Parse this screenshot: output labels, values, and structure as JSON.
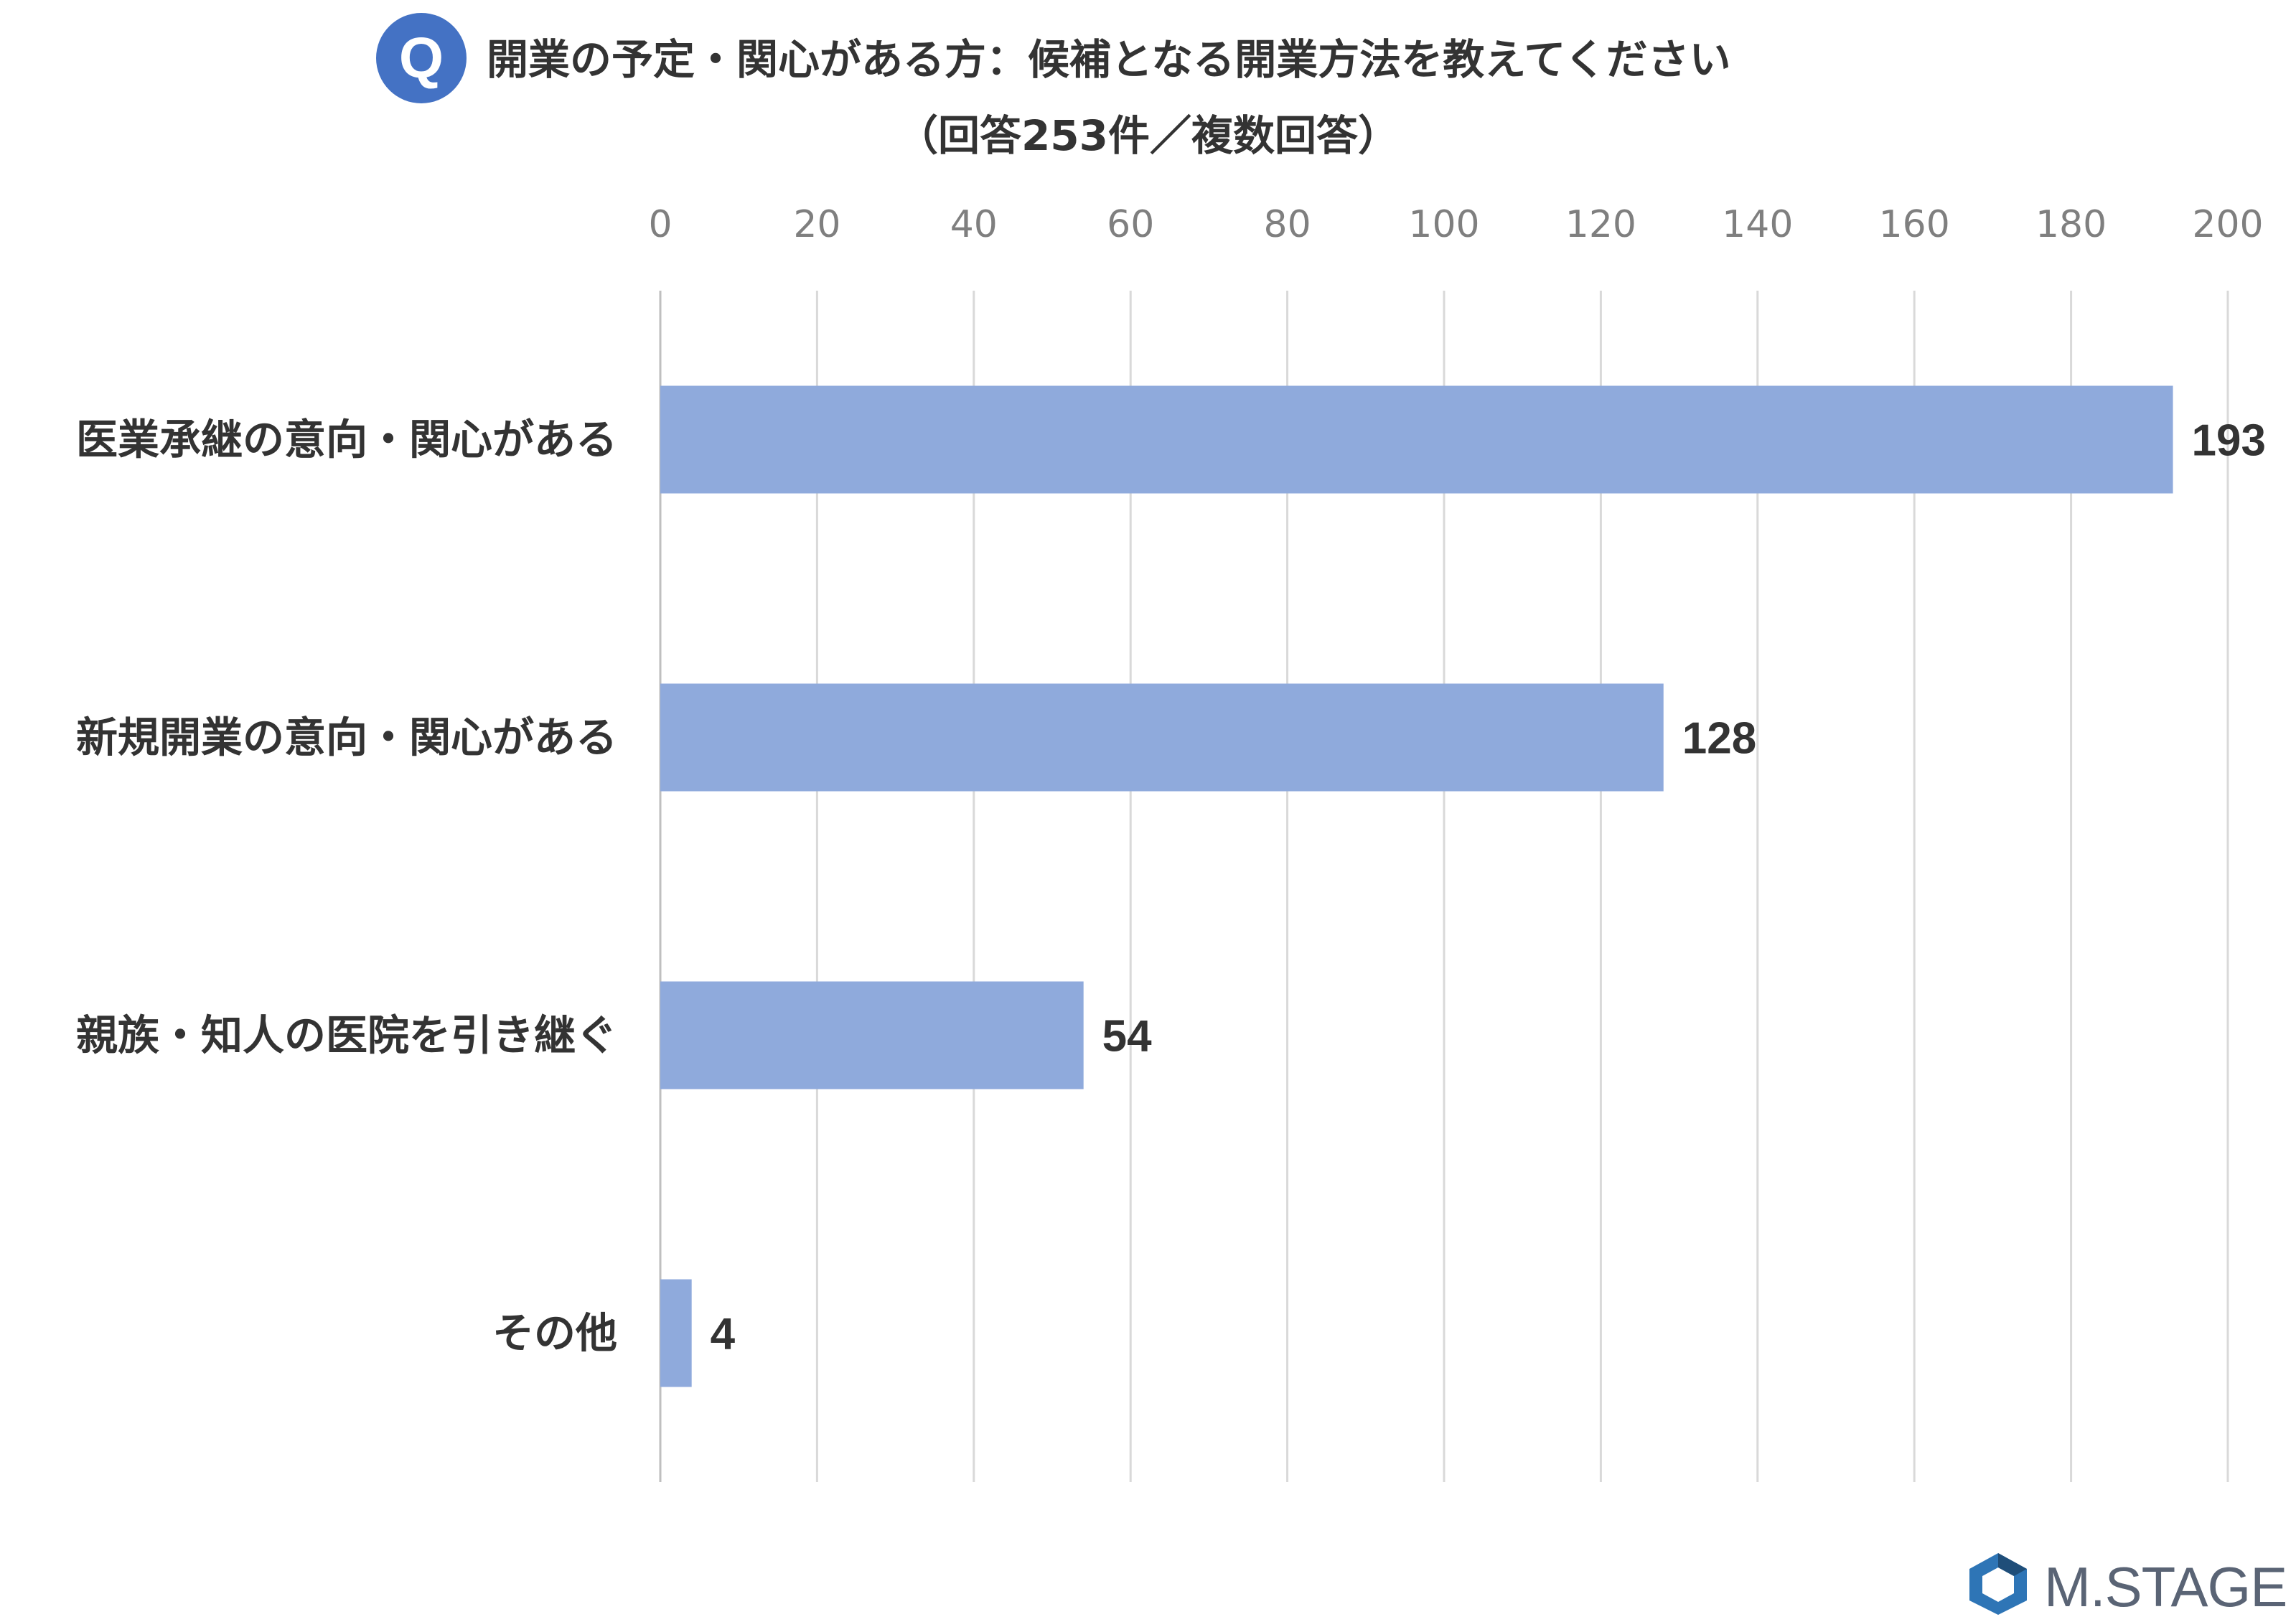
{
  "header": {
    "badge": "Q",
    "title": "開業の予定・関心がある方：候補となる開業方法を教えてください",
    "subtitle": "（回答253件／複数回答）"
  },
  "chart_data": {
    "type": "bar",
    "orientation": "horizontal",
    "categories": [
      "医業承継の意向・関心がある",
      "新規開業の意向・関心がある",
      "親族・知人の医院を引き継ぐ",
      "その他"
    ],
    "values": [
      193,
      128,
      54,
      4
    ],
    "xlim": [
      0,
      200
    ],
    "ticks": [
      0,
      20,
      40,
      60,
      80,
      100,
      120,
      140,
      160,
      180,
      200
    ],
    "tick_position": "top",
    "grid": true,
    "data_labels": true,
    "colors": {
      "bar": "#8faadc",
      "grid": "#d9d9d9",
      "axis": "#bfbfbf",
      "tick_text": "#7f7f7f",
      "label_text": "#333333"
    }
  },
  "logo": {
    "text": "M.STAGE",
    "colors": {
      "mark": "#2e75b6",
      "text": "#5a6475"
    }
  }
}
